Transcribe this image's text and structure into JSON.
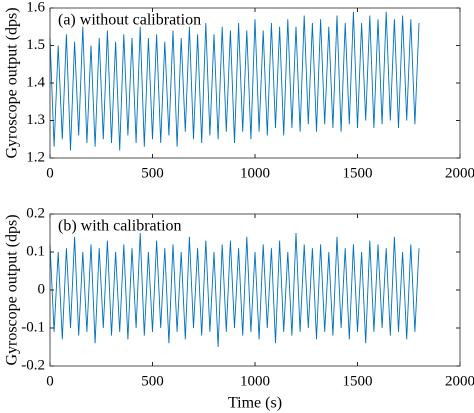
{
  "chart_data": [
    {
      "type": "line",
      "annotation": "(a) without calibration",
      "ylabel": "Gyroscope output (dps)",
      "color": "#0072bd",
      "x": [
        0,
        20,
        40,
        60,
        80,
        100,
        120,
        140,
        160,
        180,
        200,
        220,
        240,
        260,
        280,
        300,
        320,
        340,
        360,
        380,
        400,
        420,
        440,
        460,
        480,
        500,
        520,
        540,
        560,
        580,
        600,
        620,
        640,
        660,
        680,
        700,
        720,
        740,
        760,
        780,
        800,
        820,
        840,
        860,
        880,
        900,
        920,
        940,
        960,
        980,
        1000,
        1020,
        1040,
        1060,
        1080,
        1100,
        1120,
        1140,
        1160,
        1180,
        1200,
        1220,
        1240,
        1260,
        1280,
        1300,
        1320,
        1340,
        1360,
        1380,
        1400,
        1420,
        1440,
        1460,
        1480,
        1500,
        1520,
        1540,
        1560,
        1580,
        1600,
        1620,
        1640,
        1660,
        1680,
        1700,
        1720,
        1740,
        1760,
        1780,
        1800
      ],
      "values": [
        1.52,
        1.23,
        1.5,
        1.25,
        1.53,
        1.22,
        1.51,
        1.26,
        1.55,
        1.24,
        1.5,
        1.23,
        1.52,
        1.25,
        1.54,
        1.24,
        1.51,
        1.22,
        1.53,
        1.26,
        1.52,
        1.24,
        1.55,
        1.23,
        1.52,
        1.25,
        1.53,
        1.24,
        1.51,
        1.26,
        1.54,
        1.23,
        1.52,
        1.27,
        1.55,
        1.25,
        1.53,
        1.24,
        1.56,
        1.26,
        1.53,
        1.25,
        1.55,
        1.27,
        1.54,
        1.24,
        1.56,
        1.27,
        1.54,
        1.25,
        1.57,
        1.27,
        1.54,
        1.26,
        1.56,
        1.28,
        1.55,
        1.26,
        1.57,
        1.28,
        1.55,
        1.27,
        1.58,
        1.29,
        1.56,
        1.27,
        1.57,
        1.29,
        1.55,
        1.28,
        1.58,
        1.27,
        1.56,
        1.29,
        1.59,
        1.28,
        1.56,
        1.3,
        1.58,
        1.28,
        1.57,
        1.29,
        1.59,
        1.3,
        1.57,
        1.28,
        1.58,
        1.3,
        1.57,
        1.29,
        1.56
      ],
      "xlim": [
        0,
        2000
      ],
      "xticks": [
        0,
        500,
        1000,
        1500,
        2000
      ],
      "ylim": [
        1.2,
        1.6
      ],
      "yticks": [
        1.2,
        1.3,
        1.4,
        1.5,
        1.6
      ]
    },
    {
      "type": "line",
      "annotation": "(b) with calibration",
      "ylabel": "Gyroscope output (dps)",
      "xlabel": "Time (s)",
      "color": "#0072bd",
      "x": [
        0,
        20,
        40,
        60,
        80,
        100,
        120,
        140,
        160,
        180,
        200,
        220,
        240,
        260,
        280,
        300,
        320,
        340,
        360,
        380,
        400,
        420,
        440,
        460,
        480,
        500,
        520,
        540,
        560,
        580,
        600,
        620,
        640,
        660,
        680,
        700,
        720,
        740,
        760,
        780,
        800,
        820,
        840,
        860,
        880,
        900,
        920,
        940,
        960,
        980,
        1000,
        1020,
        1040,
        1060,
        1080,
        1100,
        1120,
        1140,
        1160,
        1180,
        1200,
        1220,
        1240,
        1260,
        1280,
        1300,
        1320,
        1340,
        1360,
        1380,
        1400,
        1420,
        1440,
        1460,
        1480,
        1500,
        1520,
        1540,
        1560,
        1580,
        1600,
        1620,
        1640,
        1660,
        1680,
        1700,
        1720,
        1740,
        1760,
        1780,
        1800
      ],
      "values": [
        0.12,
        -0.11,
        0.1,
        -0.13,
        0.11,
        -0.1,
        0.14,
        -0.12,
        0.1,
        -0.11,
        0.12,
        -0.14,
        0.11,
        -0.1,
        0.13,
        -0.12,
        0.1,
        -0.11,
        0.12,
        -0.13,
        0.11,
        -0.1,
        0.15,
        -0.12,
        0.1,
        -0.11,
        0.13,
        -0.1,
        0.11,
        -0.14,
        0.12,
        -0.11,
        0.1,
        -0.13,
        0.14,
        -0.1,
        0.11,
        -0.12,
        0.13,
        -0.11,
        0.1,
        -0.15,
        0.12,
        -0.11,
        0.13,
        -0.1,
        0.11,
        -0.12,
        0.14,
        -0.11,
        0.1,
        -0.13,
        0.12,
        -0.1,
        0.11,
        -0.14,
        0.13,
        -0.11,
        0.1,
        -0.12,
        0.15,
        -0.11,
        0.12,
        -0.1,
        0.11,
        -0.13,
        0.12,
        -0.11,
        0.1,
        -0.12,
        0.14,
        -0.1,
        0.11,
        -0.13,
        0.12,
        -0.11,
        0.1,
        -0.14,
        0.13,
        -0.11,
        0.12,
        -0.1,
        0.11,
        -0.12,
        0.14,
        -0.11,
        0.1,
        -0.13,
        0.12,
        -0.11,
        0.11
      ],
      "xlim": [
        0,
        2000
      ],
      "xticks": [
        0,
        500,
        1000,
        1500,
        2000
      ],
      "ylim": [
        -0.2,
        0.2
      ],
      "yticks": [
        -0.2,
        -0.1,
        0,
        0.1,
        0.2
      ]
    }
  ]
}
